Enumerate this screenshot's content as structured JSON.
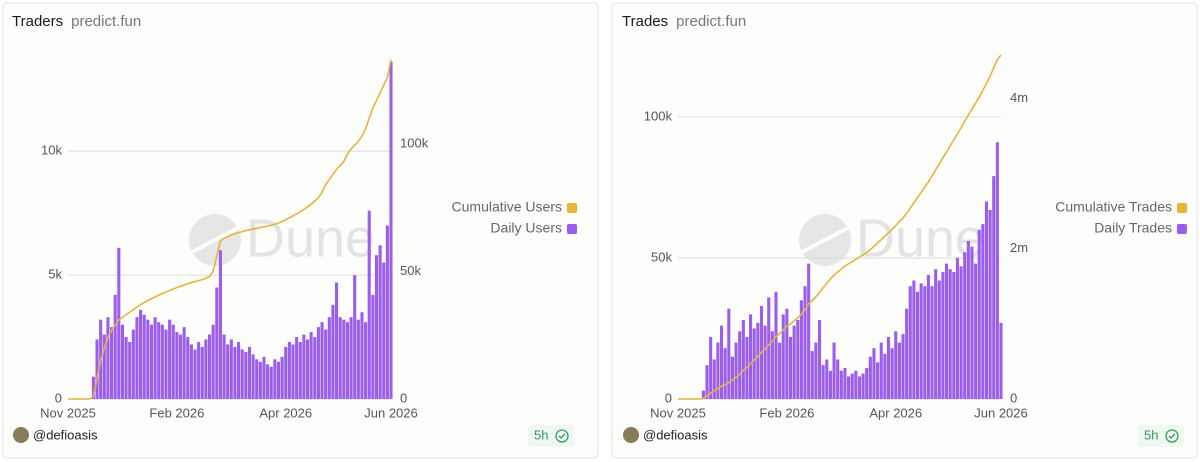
{
  "chart_data": [
    {
      "type": "bar-line",
      "title": "Traders",
      "subtitle": "predict.fun",
      "watermark": "Dune",
      "author": "@defioasis",
      "age": "5h",
      "categories": [
        "Nov 2025",
        null,
        null,
        null,
        null,
        null,
        null,
        null,
        null,
        null,
        null,
        null,
        null,
        null,
        null,
        null,
        null,
        null,
        null,
        null,
        null,
        null,
        null,
        null,
        null,
        null,
        null,
        null,
        null,
        null,
        "Feb 2026",
        null,
        null,
        null,
        null,
        null,
        null,
        null,
        null,
        null,
        null,
        null,
        null,
        null,
        null,
        null,
        null,
        null,
        null,
        null,
        null,
        null,
        null,
        null,
        null,
        null,
        null,
        null,
        null,
        null,
        "Apr 2026",
        null,
        null,
        null,
        null,
        null,
        null,
        null,
        null,
        null,
        null,
        null,
        null,
        null,
        null,
        null,
        null,
        null,
        null,
        null,
        null,
        null,
        null,
        null,
        null,
        null,
        null,
        null,
        null,
        "Jun 2026"
      ],
      "series": [
        {
          "name": "Cumulative Users",
          "color": "#e6b43c",
          "axis": "y2",
          "values": [
            0,
            0,
            0,
            0,
            0,
            0,
            0,
            1000,
            8000,
            15000,
            20000,
            24000,
            27000,
            29000,
            31000,
            32000,
            33000,
            34000,
            35000,
            36000,
            37000,
            37800,
            38600,
            39300,
            40000,
            40700,
            41300,
            41900,
            42500,
            43100,
            43700,
            44200,
            44700,
            45200,
            45600,
            46000,
            46400,
            46800,
            47300,
            48000,
            50000,
            56000,
            62000,
            63000,
            63700,
            64300,
            64800,
            65200,
            65600,
            66000,
            66300,
            66600,
            66900,
            67200,
            67500,
            67800,
            68100,
            68500,
            69000,
            69600,
            70300,
            71000,
            71800,
            72600,
            73400,
            74300,
            75300,
            76400,
            77600,
            79000,
            81000,
            84000,
            86000,
            88000,
            90000,
            91500,
            93000,
            96000,
            98000,
            99500,
            101000,
            103000,
            106000,
            110000,
            114000,
            117000,
            120000,
            123000,
            126000,
            133000
          ]
        },
        {
          "name": "Daily Users",
          "color": "#9b5cf0",
          "values": [
            0,
            0,
            0,
            0,
            0,
            0,
            0,
            900,
            2400,
            3200,
            2600,
            3300,
            2900,
            4200,
            6100,
            3000,
            2500,
            2300,
            2800,
            3300,
            3600,
            3400,
            3200,
            3000,
            3300,
            3100,
            3000,
            2800,
            3200,
            3000,
            2700,
            2600,
            2900,
            2500,
            2200,
            2000,
            2300,
            2100,
            2400,
            2600,
            3000,
            4500,
            6000,
            2600,
            2200,
            2400,
            2100,
            2300,
            2000,
            1900,
            2100,
            1800,
            1600,
            1500,
            1700,
            1400,
            1300,
            1600,
            1500,
            1700,
            2100,
            2300,
            2200,
            2500,
            2300,
            2600,
            2400,
            2700,
            2500,
            2900,
            3100,
            2800,
            3300,
            3800,
            4700,
            3300,
            3200,
            3100,
            3300,
            5000,
            3200,
            3500,
            3100,
            7600,
            4200,
            5800,
            6200,
            5500,
            7000,
            13600
          ]
        }
      ],
      "ylim": [
        0,
        14000
      ],
      "yticks": [
        0,
        {
          "value": 5000,
          "label": "5k"
        },
        {
          "value": 10000,
          "label": "10k"
        }
      ],
      "y2lim": [
        0,
        136000
      ],
      "y2ticks": [
        0,
        {
          "value": 50000,
          "label": "50k"
        },
        {
          "value": 100000,
          "label": "100k"
        }
      ],
      "grid": true
    },
    {
      "type": "bar-line",
      "title": "Trades",
      "subtitle": "predict.fun",
      "watermark": "Dune",
      "author": "@defioasis",
      "age": "5h",
      "categories": [
        "Nov 2025",
        null,
        null,
        null,
        null,
        null,
        null,
        null,
        null,
        null,
        null,
        null,
        null,
        null,
        null,
        null,
        null,
        null,
        null,
        null,
        null,
        null,
        null,
        null,
        null,
        null,
        null,
        null,
        null,
        null,
        "Feb 2026",
        null,
        null,
        null,
        null,
        null,
        null,
        null,
        null,
        null,
        null,
        null,
        null,
        null,
        null,
        null,
        null,
        null,
        null,
        null,
        null,
        null,
        null,
        null,
        null,
        null,
        null,
        null,
        null,
        null,
        "Apr 2026",
        null,
        null,
        null,
        null,
        null,
        null,
        null,
        null,
        null,
        null,
        null,
        null,
        null,
        null,
        null,
        null,
        null,
        null,
        null,
        null,
        null,
        null,
        null,
        null,
        null,
        null,
        null,
        null,
        "Jun 2026"
      ],
      "series": [
        {
          "name": "Cumulative Trades",
          "color": "#e6b43c",
          "axis": "y2",
          "values": [
            0,
            0,
            0,
            0,
            0,
            0,
            0,
            10000,
            40000,
            80000,
            110000,
            140000,
            170000,
            190000,
            220000,
            250000,
            290000,
            330000,
            380000,
            420000,
            470000,
            520000,
            570000,
            620000,
            670000,
            720000,
            770000,
            830000,
            870000,
            920000,
            970000,
            1000000,
            1040000,
            1080000,
            1130000,
            1190000,
            1270000,
            1310000,
            1360000,
            1420000,
            1480000,
            1540000,
            1600000,
            1650000,
            1690000,
            1730000,
            1770000,
            1800000,
            1830000,
            1860000,
            1890000,
            1920000,
            1950000,
            1990000,
            2030000,
            2080000,
            2120000,
            2170000,
            2210000,
            2260000,
            2310000,
            2360000,
            2410000,
            2470000,
            2540000,
            2610000,
            2680000,
            2750000,
            2820000,
            2890000,
            2970000,
            3050000,
            3130000,
            3210000,
            3290000,
            3370000,
            3450000,
            3530000,
            3610000,
            3700000,
            3780000,
            3860000,
            3940000,
            4020000,
            4110000,
            4200000,
            4300000,
            4410000,
            4520000,
            4580000
          ]
        },
        {
          "name": "Daily Trades",
          "color": "#9b5cf0",
          "values": [
            0,
            0,
            0,
            0,
            0,
            0,
            0,
            3000,
            12000,
            22000,
            14000,
            20000,
            26000,
            18000,
            32000,
            15000,
            20000,
            24000,
            28000,
            22000,
            30000,
            25000,
            27000,
            33000,
            26000,
            36000,
            24000,
            38000,
            20000,
            30000,
            32000,
            22000,
            26000,
            28000,
            35000,
            40000,
            48000,
            17000,
            20000,
            28000,
            12000,
            14000,
            10000,
            20000,
            14000,
            10000,
            11000,
            8000,
            9000,
            10000,
            8000,
            9000,
            11000,
            15000,
            18000,
            13000,
            20000,
            16000,
            22000,
            18000,
            24000,
            20000,
            23000,
            32000,
            40000,
            42000,
            38000,
            41000,
            40000,
            44000,
            40000,
            46000,
            42000,
            45000,
            48000,
            46000,
            45000,
            50000,
            47000,
            52000,
            56000,
            54000,
            48000,
            60000,
            62000,
            70000,
            67000,
            79000,
            91000,
            27000
          ]
        }
      ],
      "ylim": [
        0,
        123000
      ],
      "yticks": [
        0,
        {
          "value": 50000,
          "label": "50k"
        },
        {
          "value": 100000,
          "label": "100k"
        }
      ],
      "y2lim": [
        0,
        4620000
      ],
      "y2ticks": [
        0,
        {
          "value": 2000000,
          "label": "2m"
        },
        {
          "value": 4000000,
          "label": "4m"
        }
      ],
      "grid": true
    }
  ]
}
